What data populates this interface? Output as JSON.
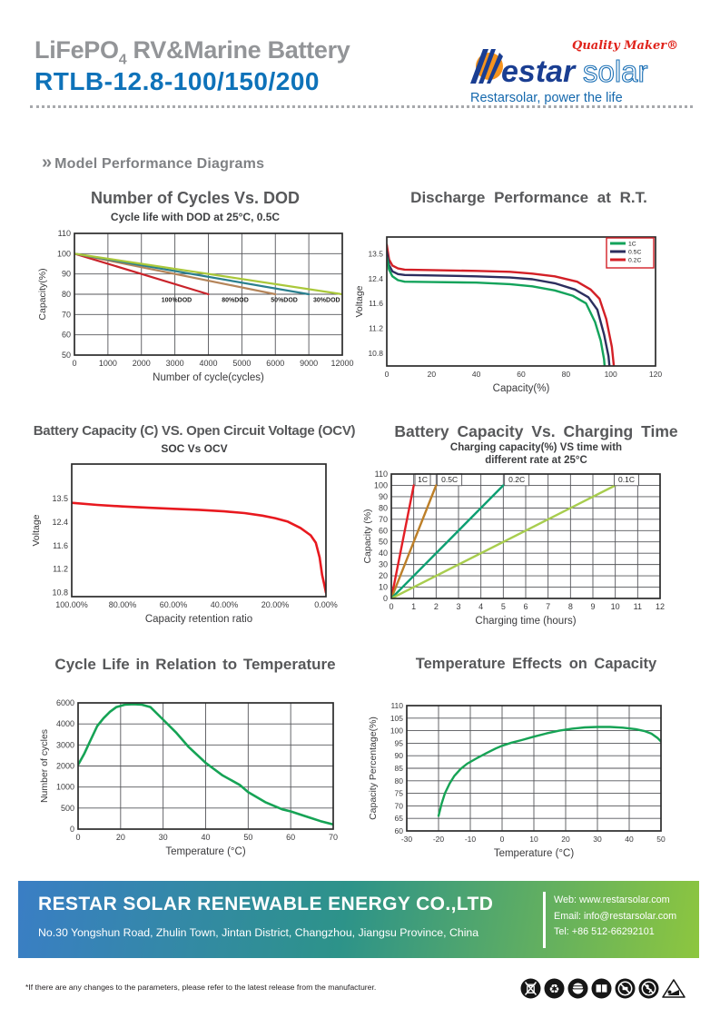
{
  "header": {
    "title_main": "LiFePO",
    "title_sub": "4",
    "title_rest": " RV&Marine Battery",
    "model": "RTLB-12.8-100/150/200",
    "logo": {
      "quality": "Quality Maker®",
      "brand_bold": "estar",
      "brand_light": "solar",
      "tagline": "Restarsolar, power  the  life",
      "brand_blue": "#1a3e92",
      "accent_orange": "#f7941d",
      "accent_red": "#e0231b",
      "tagline_blue": "#1468ad"
    }
  },
  "section": {
    "chevron": "»",
    "heading": "Model Performance Diagrams"
  },
  "chart_data": [
    {
      "type": "line",
      "title": "Number of Cycles Vs. DOD",
      "subtitle": "Cycle life with DOD at 25°C, 0.5C",
      "xlabel": "Number of cycle(cycles)",
      "ylabel": "Capacity(%)",
      "xticks": [
        0,
        1000,
        2000,
        3000,
        4000,
        5000,
        6000,
        9000,
        12000
      ],
      "yticks": [
        50,
        60,
        70,
        80,
        90,
        100,
        110
      ],
      "grid": true,
      "series": [
        {
          "name": "100%DOD",
          "color": "#c9232a",
          "points": [
            [
              0,
              100
            ],
            [
              4000,
              80
            ]
          ]
        },
        {
          "name": "80%DOD",
          "color": "#b5855a",
          "points": [
            [
              0,
              100
            ],
            [
              6000,
              80
            ]
          ]
        },
        {
          "name": "50%DOD",
          "color": "#2a7f8e",
          "points": [
            [
              0,
              100
            ],
            [
              9000,
              80
            ]
          ]
        },
        {
          "name": "30%DOD",
          "color": "#aac83a",
          "points": [
            [
              0,
              100
            ],
            [
              12000,
              80
            ]
          ]
        }
      ],
      "annotations": [
        {
          "text": "100%DOD",
          "x": 3050,
          "y": 77.6
        },
        {
          "text": "80%DOD",
          "x": 4800,
          "y": 77.6
        },
        {
          "text": "50%DOD",
          "x": 6800,
          "y": 77.6
        },
        {
          "text": "30%DOD",
          "x": 10600,
          "y": 77.6
        }
      ]
    },
    {
      "type": "line",
      "title": "Discharge Performance at R.T.",
      "xlabel": "Capacity(%)",
      "ylabel": "Voltage",
      "xticks": [
        0,
        20,
        40,
        60,
        80,
        100,
        120
      ],
      "yticks": [
        10.8,
        11.2,
        11.6,
        12.4,
        13.5
      ],
      "ypad": [
        0.13,
        0.1
      ],
      "grid": false,
      "legend": {
        "border": "#d31f26",
        "items": [
          {
            "label": "1C",
            "color": "#13a35b"
          },
          {
            "label": "0.5C",
            "color": "#2c2e5e"
          },
          {
            "label": "0.2C",
            "color": "#d31f26"
          }
        ]
      },
      "series": [
        {
          "name": "0.2C",
          "color": "#d31f26",
          "points": [
            [
              0,
              13.9
            ],
            [
              1,
              13.25
            ],
            [
              2.5,
              12.98
            ],
            [
              5,
              12.85
            ],
            [
              8,
              12.8
            ],
            [
              20,
              12.78
            ],
            [
              40,
              12.74
            ],
            [
              55,
              12.7
            ],
            [
              65,
              12.62
            ],
            [
              75,
              12.5
            ],
            [
              85,
              12.3
            ],
            [
              91,
              12.05
            ],
            [
              95,
              11.75
            ],
            [
              98,
              11.35
            ],
            [
              100.5,
              10.9
            ],
            [
              101.8,
              10.45
            ]
          ]
        },
        {
          "name": "0.5C",
          "color": "#2c2e5e",
          "points": [
            [
              0,
              13.6
            ],
            [
              1,
              13.0
            ],
            [
              2.5,
              12.72
            ],
            [
              5,
              12.6
            ],
            [
              8,
              12.56
            ],
            [
              20,
              12.54
            ],
            [
              40,
              12.5
            ],
            [
              55,
              12.45
            ],
            [
              65,
              12.38
            ],
            [
              75,
              12.25
            ],
            [
              84,
              12.05
            ],
            [
              90,
              11.8
            ],
            [
              94,
              11.5
            ],
            [
              97,
              11.1
            ],
            [
              99,
              10.75
            ],
            [
              99.8,
              10.45
            ]
          ]
        },
        {
          "name": "1C",
          "color": "#13a35b",
          "points": [
            [
              0,
              13.35
            ],
            [
              1,
              12.8
            ],
            [
              2.5,
              12.5
            ],
            [
              5,
              12.35
            ],
            [
              8,
              12.3
            ],
            [
              20,
              12.29
            ],
            [
              40,
              12.27
            ],
            [
              55,
              12.22
            ],
            [
              65,
              12.15
            ],
            [
              75,
              12.02
            ],
            [
              83,
              11.85
            ],
            [
              89,
              11.6
            ],
            [
              93,
              11.3
            ],
            [
              95.5,
              11.0
            ],
            [
              97,
              10.7
            ],
            [
              97.6,
              10.45
            ]
          ]
        }
      ]
    },
    {
      "type": "line",
      "title": "Battery Capacity (C)  VS.  Open Circuit Voltage (OCV)",
      "subtitle": "SOC Vs OCV",
      "xlabel": "Capacity retention ratio",
      "ylabel": "Voltage",
      "xticks": [
        100,
        80,
        60,
        40,
        20,
        0
      ],
      "xtick_labels": [
        "100.00%",
        "80.00%",
        "60.00%",
        "40.00%",
        "20.00%",
        "0.00%"
      ],
      "yticks": [
        10.8,
        11.2,
        11.6,
        12.4,
        13.5
      ],
      "ypad": [
        0.26,
        0.03
      ],
      "grid": false,
      "series": [
        {
          "name": "SOC vs OCV",
          "color": "#e8191f",
          "points": [
            [
              100,
              13.3
            ],
            [
              90,
              13.2
            ],
            [
              80,
              13.13
            ],
            [
              70,
              13.07
            ],
            [
              60,
              13.02
            ],
            [
              50,
              12.97
            ],
            [
              40,
              12.9
            ],
            [
              32,
              12.82
            ],
            [
              25,
              12.7
            ],
            [
              20,
              12.58
            ],
            [
              15,
              12.42
            ],
            [
              10,
              12.2
            ],
            [
              6,
              11.95
            ],
            [
              4,
              11.7
            ],
            [
              2.5,
              11.4
            ],
            [
              1.5,
              11.1
            ],
            [
              0.7,
              10.95
            ],
            [
              0,
              10.8
            ]
          ]
        }
      ]
    },
    {
      "type": "line",
      "title": "Battery Capacity Vs. Charging Time",
      "subtitle": "Charging capacity(%) VS  time with",
      "subtitle2": "different rate at 25°C",
      "xlabel": "Charging time (hours)",
      "ylabel": "Capacity (%)",
      "xticks": [
        0,
        1,
        2,
        3,
        4,
        5,
        6,
        7,
        8,
        9,
        10,
        11,
        12
      ],
      "yticks": [
        0,
        10,
        20,
        30,
        40,
        50,
        60,
        70,
        80,
        90,
        100,
        110
      ],
      "grid": true,
      "series": [
        {
          "name": "1C",
          "color": "#e31e25",
          "points": [
            [
              0,
              0
            ],
            [
              1,
              100
            ]
          ]
        },
        {
          "name": "0.5C",
          "color": "#bd7f28",
          "points": [
            [
              0,
              0
            ],
            [
              2,
              100
            ]
          ]
        },
        {
          "name": "0.2C",
          "color": "#0d9f72",
          "points": [
            [
              0,
              0
            ],
            [
              5,
              100
            ]
          ]
        },
        {
          "name": "0.1C",
          "color": "#a8cd4e",
          "points": [
            [
              0,
              0
            ],
            [
              10,
              100
            ]
          ]
        }
      ],
      "annotations": [
        {
          "text": "1C",
          "x": 1.4,
          "y": 105,
          "boxed": true
        },
        {
          "text": "0.5C",
          "x": 2.6,
          "y": 105,
          "boxed": true
        },
        {
          "text": "0.2C",
          "x": 5.6,
          "y": 105,
          "boxed": true
        },
        {
          "text": "0.1C",
          "x": 10.5,
          "y": 105,
          "boxed": true
        }
      ]
    },
    {
      "type": "line",
      "title": "Cycle Life in Relation to Temperature",
      "xlabel": "Temperature (°C)",
      "ylabel": "Number of cycles",
      "xticks": [
        0,
        20,
        30,
        40,
        50,
        60,
        70
      ],
      "yticks": [
        0,
        500,
        1000,
        2000,
        3000,
        4000,
        6000
      ],
      "grid": true,
      "series": [
        {
          "name": "cycle life",
          "color": "#16a355",
          "points": [
            [
              0,
              2050
            ],
            [
              3,
              2600
            ],
            [
              6,
              3250
            ],
            [
              9,
              3900
            ],
            [
              12,
              4550
            ],
            [
              15,
              5150
            ],
            [
              18,
              5600
            ],
            [
              21,
              5830
            ],
            [
              23,
              5870
            ],
            [
              25,
              5830
            ],
            [
              27,
              5600
            ],
            [
              30,
              4400
            ],
            [
              33,
              3600
            ],
            [
              36,
              2900
            ],
            [
              40,
              2150
            ],
            [
              44,
              1550
            ],
            [
              48,
              1100
            ],
            [
              50,
              880
            ],
            [
              54,
              640
            ],
            [
              58,
              470
            ],
            [
              60,
              420
            ],
            [
              64,
              290
            ],
            [
              67,
              190
            ],
            [
              70,
              110
            ]
          ]
        }
      ]
    },
    {
      "type": "line",
      "title": "Temperature Effects on Capacity",
      "xlabel": "Temperature (°C)",
      "ylabel": "Capacity Percentage(%)",
      "xticks": [
        -30,
        -20,
        -10,
        0,
        10,
        20,
        30,
        40,
        50
      ],
      "yticks": [
        60,
        65,
        70,
        75,
        80,
        85,
        90,
        95,
        100,
        105,
        110
      ],
      "grid": true,
      "series": [
        {
          "name": "capacity",
          "color": "#16a355",
          "points": [
            [
              -20,
              66
            ],
            [
              -19,
              71
            ],
            [
              -18,
              75
            ],
            [
              -16.5,
              79
            ],
            [
              -15,
              82
            ],
            [
              -13,
              84.8
            ],
            [
              -11,
              86.8
            ],
            [
              -8,
              89
            ],
            [
              -5,
              91
            ],
            [
              -2,
              92.9
            ],
            [
              0,
              94
            ],
            [
              3,
              95.2
            ],
            [
              6,
              96.2
            ],
            [
              10,
              97.6
            ],
            [
              14,
              98.9
            ],
            [
              18,
              100
            ],
            [
              22,
              100.8
            ],
            [
              26,
              101.3
            ],
            [
              30,
              101.5
            ],
            [
              34,
              101.5
            ],
            [
              38,
              101.2
            ],
            [
              42,
              100.6
            ],
            [
              45,
              99.8
            ],
            [
              47,
              98.8
            ],
            [
              49,
              97
            ],
            [
              50,
              95.7
            ]
          ]
        }
      ]
    }
  ],
  "footer": {
    "company": "RESTAR SOLAR RENEWABLE ENERGY CO.,LTD",
    "address": "No.30 Yongshun Road, Zhulin Town, Jintan District, Changzhou, Jiangsu Province, China",
    "web": "Web: www.restarsolar.com",
    "email": "Email: info@restarsolar.com",
    "tel": "Tel: +86 512-66292101"
  },
  "fine_print": "*If there are any changes to the parameters, please refer to the latest release from the manufacturer.",
  "icons": [
    "no-disposal-icon",
    "recycle-icon",
    "eye-protection-icon",
    "read-manual-icon",
    "no-open-flame-icon",
    "no-short-circuit-icon",
    "crush-hazard-icon"
  ]
}
